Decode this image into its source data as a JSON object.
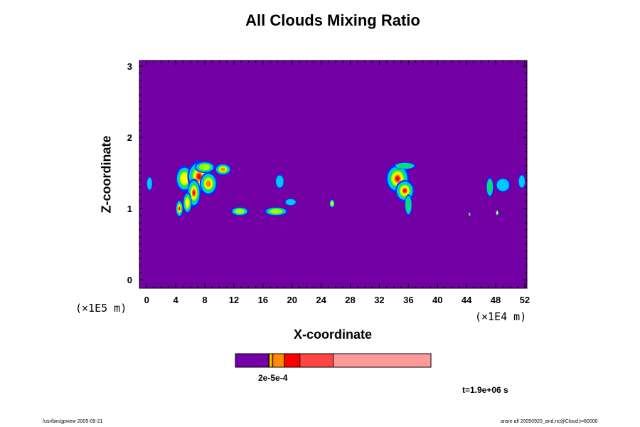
{
  "chart_data": {
    "type": "heatmap",
    "title": "All Clouds Mixing Ratio",
    "xlabel": "X-coordinate",
    "ylabel": "Z-coordinate",
    "x_unit_label": "(×1E4 m)",
    "y_unit_label": "(×1E5 m)",
    "x_ticks": [
      0,
      4,
      8,
      12,
      16,
      20,
      24,
      28,
      32,
      36,
      40,
      44,
      48,
      52
    ],
    "y_ticks": [
      0,
      1,
      2,
      3
    ],
    "xlim": [
      -1,
      52.3
    ],
    "ylim": [
      -0.12,
      3.08
    ],
    "background_value_color": "#7300a5",
    "colorbar": {
      "segments": [
        {
          "from": 0.0,
          "to": 0.17,
          "color": "#7300a5"
        },
        {
          "from": 0.17,
          "to": 0.175,
          "color": "#000000"
        },
        {
          "from": 0.175,
          "to": 0.18,
          "color": "#ffd700"
        },
        {
          "from": 0.18,
          "to": 0.19,
          "color": "#ffa500"
        },
        {
          "from": 0.19,
          "to": 0.2,
          "color": "#ff6600"
        },
        {
          "from": 0.2,
          "to": 0.25,
          "color": "#ff8c00"
        },
        {
          "from": 0.25,
          "to": 0.33,
          "color": "#ff0000"
        },
        {
          "from": 0.33,
          "to": 0.5,
          "color": "#ff4444"
        },
        {
          "from": 0.5,
          "to": 1.0,
          "color": "#ff9a9a"
        }
      ],
      "label": "2e-5e-4"
    },
    "cloud_blobs": [
      {
        "x": 5.2,
        "z": 1.42,
        "rx": 1.2,
        "rz": 0.18,
        "intensity": 0.7
      },
      {
        "x": 7.2,
        "z": 1.45,
        "rx": 1.6,
        "rz": 0.22,
        "intensity": 0.95
      },
      {
        "x": 8.5,
        "z": 1.35,
        "rx": 1.2,
        "rz": 0.16,
        "intensity": 0.8
      },
      {
        "x": 10.5,
        "z": 1.55,
        "rx": 1.1,
        "rz": 0.08,
        "intensity": 0.75
      },
      {
        "x": 8.0,
        "z": 1.58,
        "rx": 1.4,
        "rz": 0.08,
        "intensity": 0.55
      },
      {
        "x": 6.5,
        "z": 1.22,
        "rx": 0.9,
        "rz": 0.2,
        "intensity": 0.9
      },
      {
        "x": 4.5,
        "z": 1.0,
        "rx": 0.5,
        "rz": 0.12,
        "intensity": 0.85
      },
      {
        "x": 5.6,
        "z": 1.08,
        "rx": 0.6,
        "rz": 0.15,
        "intensity": 0.7
      },
      {
        "x": 12.8,
        "z": 0.96,
        "rx": 1.2,
        "rz": 0.06,
        "intensity": 0.6
      },
      {
        "x": 17.8,
        "z": 0.96,
        "rx": 1.6,
        "rz": 0.06,
        "intensity": 0.55
      },
      {
        "x": 18.3,
        "z": 1.38,
        "rx": 0.6,
        "rz": 0.1,
        "intensity": 0.4
      },
      {
        "x": 19.8,
        "z": 1.09,
        "rx": 0.8,
        "rz": 0.05,
        "intensity": 0.3
      },
      {
        "x": 25.5,
        "z": 1.07,
        "rx": 0.35,
        "rz": 0.06,
        "intensity": 0.65
      },
      {
        "x": 34.5,
        "z": 1.42,
        "rx": 1.6,
        "rz": 0.2,
        "intensity": 0.9
      },
      {
        "x": 35.5,
        "z": 1.25,
        "rx": 1.3,
        "rz": 0.15,
        "intensity": 0.95
      },
      {
        "x": 36.0,
        "z": 1.05,
        "rx": 0.5,
        "rz": 0.15,
        "intensity": 0.5
      },
      {
        "x": 35.5,
        "z": 1.6,
        "rx": 1.5,
        "rz": 0.05,
        "intensity": 0.5
      },
      {
        "x": 49.0,
        "z": 1.33,
        "rx": 1.0,
        "rz": 0.1,
        "intensity": 0.35
      },
      {
        "x": 47.2,
        "z": 1.3,
        "rx": 0.5,
        "rz": 0.14,
        "intensity": 0.45
      },
      {
        "x": 51.6,
        "z": 1.38,
        "rx": 0.5,
        "rz": 0.1,
        "intensity": 0.3
      },
      {
        "x": 0.4,
        "z": 1.35,
        "rx": 0.4,
        "rz": 0.1,
        "intensity": 0.3
      },
      {
        "x": 44.4,
        "z": 0.92,
        "rx": 0.15,
        "rz": 0.03,
        "intensity": 0.8
      },
      {
        "x": 48.2,
        "z": 0.94,
        "rx": 0.2,
        "rz": 0.04,
        "intensity": 0.7
      }
    ]
  },
  "time_label": "t=1.9e+06 s",
  "footer_left": "/usr/bin/gpview 2005-09-21",
  "footer_right": "arare-all 20050920_and.nc@Cloud,t=80000"
}
